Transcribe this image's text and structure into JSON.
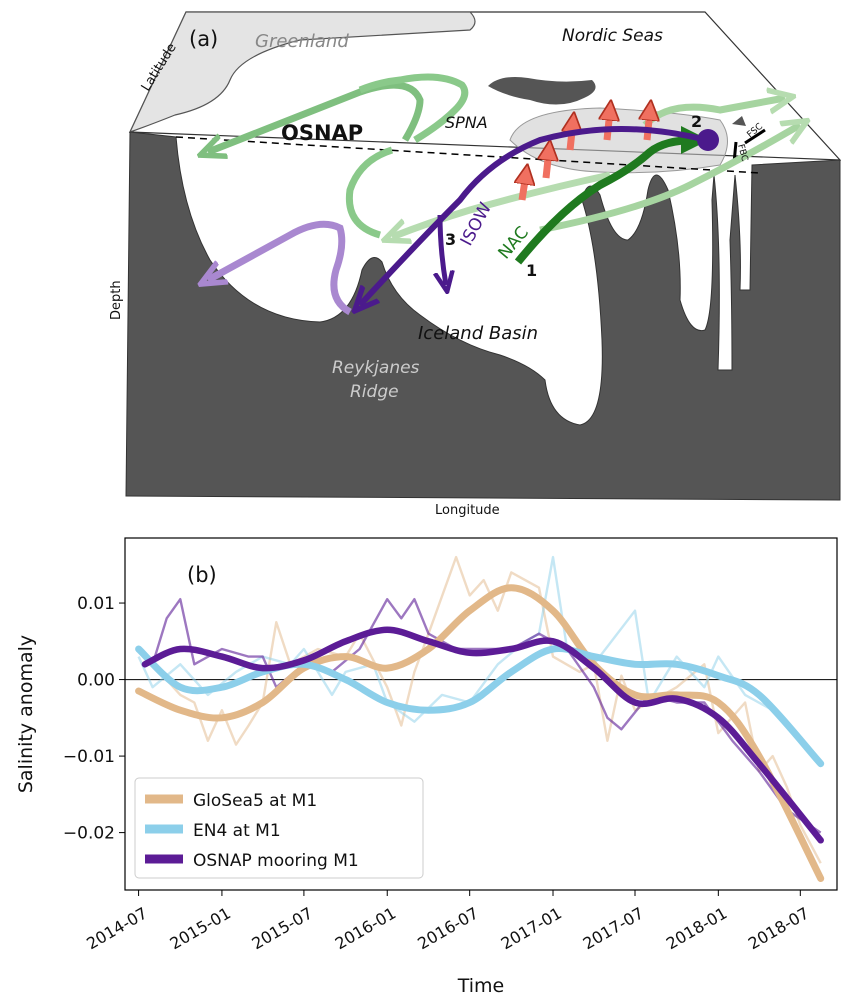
{
  "schematic": {
    "panel_label": "(a)",
    "labels": {
      "greenland": "Greenland",
      "nordic_seas": "Nordic Seas",
      "osnap": "OSNAP",
      "spna": "SPNA",
      "isow": "ISOW",
      "nac": "NAC",
      "iceland_basin": "Iceland Basin",
      "reykjanes_1": "Reykjanes",
      "reykjanes_2": "Ridge",
      "fsc": "FSC",
      "fbc": "FBC",
      "marker_1": "1",
      "marker_2": "2",
      "marker_3": "3"
    },
    "axes": {
      "latitude": "Latitude",
      "depth": "Depth",
      "longitude": "Longitude"
    },
    "colors": {
      "land": "#e2e2e2",
      "bathymetry": "#555555",
      "green_light": "#7fbf7f",
      "green_dark": "#1f7a1f",
      "purple_dark": "#4b1a8c",
      "purple_light": "#a988d0",
      "red_arrows": "#f07060"
    }
  },
  "chart_data": {
    "type": "line",
    "panel_label": "(b)",
    "xlabel": "Time",
    "ylabel": "Salinity anomaly",
    "x_ticks": [
      "2014-07",
      "2015-01",
      "2015-07",
      "2016-01",
      "2016-07",
      "2017-01",
      "2017-07",
      "2018-01",
      "2018-07"
    ],
    "y_ticks": [
      "0.01",
      "0.00",
      "−0.01",
      "−0.02"
    ],
    "y_tick_values": [
      0.01,
      0.0,
      -0.01,
      -0.02
    ],
    "ylim": [
      -0.0275,
      0.0185
    ],
    "xlim": [
      "2014-06-01",
      "2018-09-20"
    ],
    "zero_line": true,
    "grid": false,
    "legend_position": "lower-left",
    "series": [
      {
        "name": "GloSea5 at M1",
        "color": "#e2b889",
        "smooth": [
          [
            "2014-07-01",
            -0.0015
          ],
          [
            "2014-10-01",
            -0.004
          ],
          [
            "2015-01-01",
            -0.005
          ],
          [
            "2015-04-01",
            -0.003
          ],
          [
            "2015-07-01",
            0.0015
          ],
          [
            "2015-10-01",
            0.003
          ],
          [
            "2016-01-01",
            0.0015
          ],
          [
            "2016-04-01",
            0.004
          ],
          [
            "2016-07-01",
            0.009
          ],
          [
            "2016-10-01",
            0.012
          ],
          [
            "2017-01-01",
            0.009
          ],
          [
            "2017-04-01",
            0.002
          ],
          [
            "2017-07-01",
            -0.002
          ],
          [
            "2017-10-01",
            -0.002
          ],
          [
            "2018-01-01",
            -0.003
          ],
          [
            "2018-04-01",
            -0.01
          ],
          [
            "2018-08-15",
            -0.026
          ]
        ],
        "raw": [
          [
            "2014-08-01",
            0.002
          ],
          [
            "2014-10-01",
            -0.002
          ],
          [
            "2014-11-01",
            -0.003
          ],
          [
            "2014-12-01",
            -0.008
          ],
          [
            "2015-01-01",
            -0.004
          ],
          [
            "2015-02-01",
            -0.0085
          ],
          [
            "2015-03-01",
            -0.006
          ],
          [
            "2015-04-01",
            -0.003
          ],
          [
            "2015-05-01",
            0.0075
          ],
          [
            "2015-06-01",
            0.002
          ],
          [
            "2015-08-01",
            0.004
          ],
          [
            "2015-10-01",
            0.003
          ],
          [
            "2015-11-01",
            0.006
          ],
          [
            "2016-01-01",
            -0.001
          ],
          [
            "2016-02-01",
            -0.006
          ],
          [
            "2016-03-01",
            0.001
          ],
          [
            "2016-04-01",
            0.006
          ],
          [
            "2016-06-01",
            0.016
          ],
          [
            "2016-07-01",
            0.011
          ],
          [
            "2016-08-01",
            0.013
          ],
          [
            "2016-09-01",
            0.009
          ],
          [
            "2016-10-01",
            0.014
          ],
          [
            "2016-12-01",
            0.012
          ],
          [
            "2017-01-01",
            0.003
          ],
          [
            "2017-03-01",
            0.001
          ],
          [
            "2017-04-01",
            0.002
          ],
          [
            "2017-05-01",
            -0.008
          ],
          [
            "2017-06-01",
            0.0005
          ],
          [
            "2017-07-01",
            -0.004
          ],
          [
            "2017-09-01",
            -0.002
          ],
          [
            "2017-10-01",
            -0.001
          ],
          [
            "2017-12-01",
            0.002
          ],
          [
            "2018-01-01",
            -0.007
          ],
          [
            "2018-03-01",
            -0.003
          ],
          [
            "2018-04-01",
            -0.012
          ],
          [
            "2018-05-01",
            -0.01
          ],
          [
            "2018-06-01",
            -0.014
          ],
          [
            "2018-07-01",
            -0.019
          ],
          [
            "2018-08-15",
            -0.024
          ]
        ]
      },
      {
        "name": "EN4 at M1",
        "color": "#8ccfea",
        "smooth": [
          [
            "2014-07-01",
            0.004
          ],
          [
            "2014-10-01",
            -0.001
          ],
          [
            "2015-01-01",
            -0.001
          ],
          [
            "2015-04-01",
            0.001
          ],
          [
            "2015-07-01",
            0.002
          ],
          [
            "2015-10-01",
            0.0
          ],
          [
            "2016-01-01",
            -0.003
          ],
          [
            "2016-04-01",
            -0.004
          ],
          [
            "2016-07-01",
            -0.003
          ],
          [
            "2016-10-01",
            0.001
          ],
          [
            "2017-01-01",
            0.004
          ],
          [
            "2017-04-01",
            0.003
          ],
          [
            "2017-07-01",
            0.002
          ],
          [
            "2017-10-01",
            0.002
          ],
          [
            "2018-01-01",
            0.0005
          ],
          [
            "2018-04-01",
            -0.002
          ],
          [
            "2018-08-15",
            -0.011
          ]
        ],
        "raw": [
          [
            "2014-07-01",
            0.003
          ],
          [
            "2014-08-01",
            -0.001
          ],
          [
            "2014-10-01",
            0.002
          ],
          [
            "2014-12-01",
            -0.002
          ],
          [
            "2015-02-01",
            0.001
          ],
          [
            "2015-04-01",
            0.003
          ],
          [
            "2015-06-01",
            0.002
          ],
          [
            "2015-07-01",
            0.004
          ],
          [
            "2015-09-01",
            -0.002
          ],
          [
            "2015-10-01",
            0.001
          ],
          [
            "2015-12-01",
            0.002
          ],
          [
            "2016-01-01",
            -0.003
          ],
          [
            "2016-03-01",
            -0.0055
          ],
          [
            "2016-05-01",
            -0.002
          ],
          [
            "2016-07-01",
            -0.003
          ],
          [
            "2016-09-01",
            0.002
          ],
          [
            "2016-11-01",
            0.005
          ],
          [
            "2016-12-01",
            0.006
          ],
          [
            "2017-01-01",
            0.016
          ],
          [
            "2017-02-01",
            0.004
          ],
          [
            "2017-04-01",
            0.002
          ],
          [
            "2017-07-01",
            0.009
          ],
          [
            "2017-08-01",
            -0.003
          ],
          [
            "2017-10-01",
            0.003
          ],
          [
            "2017-12-01",
            -0.001
          ],
          [
            "2018-01-01",
            0.003
          ],
          [
            "2018-03-01",
            -0.002
          ],
          [
            "2018-05-01",
            -0.004
          ],
          [
            "2018-07-01",
            -0.008
          ],
          [
            "2018-08-15",
            -0.011
          ]
        ]
      },
      {
        "name": "OSNAP mooring M1",
        "color": "#5c1c96",
        "smooth": [
          [
            "2014-07-15",
            0.002
          ],
          [
            "2014-10-01",
            0.004
          ],
          [
            "2015-01-01",
            0.003
          ],
          [
            "2015-04-01",
            0.0015
          ],
          [
            "2015-07-01",
            0.0025
          ],
          [
            "2015-10-01",
            0.005
          ],
          [
            "2016-01-01",
            0.0065
          ],
          [
            "2016-04-01",
            0.005
          ],
          [
            "2016-07-01",
            0.0035
          ],
          [
            "2016-10-01",
            0.004
          ],
          [
            "2017-01-01",
            0.005
          ],
          [
            "2017-04-01",
            0.0015
          ],
          [
            "2017-07-01",
            -0.003
          ],
          [
            "2017-10-01",
            -0.0025
          ],
          [
            "2018-01-01",
            -0.005
          ],
          [
            "2018-04-01",
            -0.011
          ],
          [
            "2018-08-15",
            -0.021
          ]
        ],
        "raw": [
          [
            "2014-08-01",
            0.002
          ],
          [
            "2014-09-01",
            0.008
          ],
          [
            "2014-10-01",
            0.0105
          ],
          [
            "2014-11-01",
            0.002
          ],
          [
            "2015-01-01",
            0.004
          ],
          [
            "2015-03-01",
            0.003
          ],
          [
            "2015-04-01",
            0.003
          ],
          [
            "2015-05-01",
            -0.001
          ],
          [
            "2015-07-01",
            0.002
          ],
          [
            "2015-09-01",
            0.001
          ],
          [
            "2015-11-01",
            0.004
          ],
          [
            "2016-01-01",
            0.0105
          ],
          [
            "2016-02-01",
            0.008
          ],
          [
            "2016-03-01",
            0.0105
          ],
          [
            "2016-04-01",
            0.006
          ],
          [
            "2016-06-01",
            0.004
          ],
          [
            "2016-08-01",
            0.004
          ],
          [
            "2016-10-01",
            0.004
          ],
          [
            "2016-12-01",
            0.006
          ],
          [
            "2017-02-01",
            0.004
          ],
          [
            "2017-04-01",
            -0.001
          ],
          [
            "2017-05-01",
            -0.005
          ],
          [
            "2017-06-01",
            -0.0065
          ],
          [
            "2017-08-01",
            -0.002
          ],
          [
            "2017-10-01",
            -0.003
          ],
          [
            "2017-12-01",
            -0.003
          ],
          [
            "2018-02-01",
            -0.008
          ],
          [
            "2018-04-01",
            -0.012
          ],
          [
            "2018-06-01",
            -0.017
          ],
          [
            "2018-08-15",
            -0.02
          ]
        ]
      }
    ]
  }
}
